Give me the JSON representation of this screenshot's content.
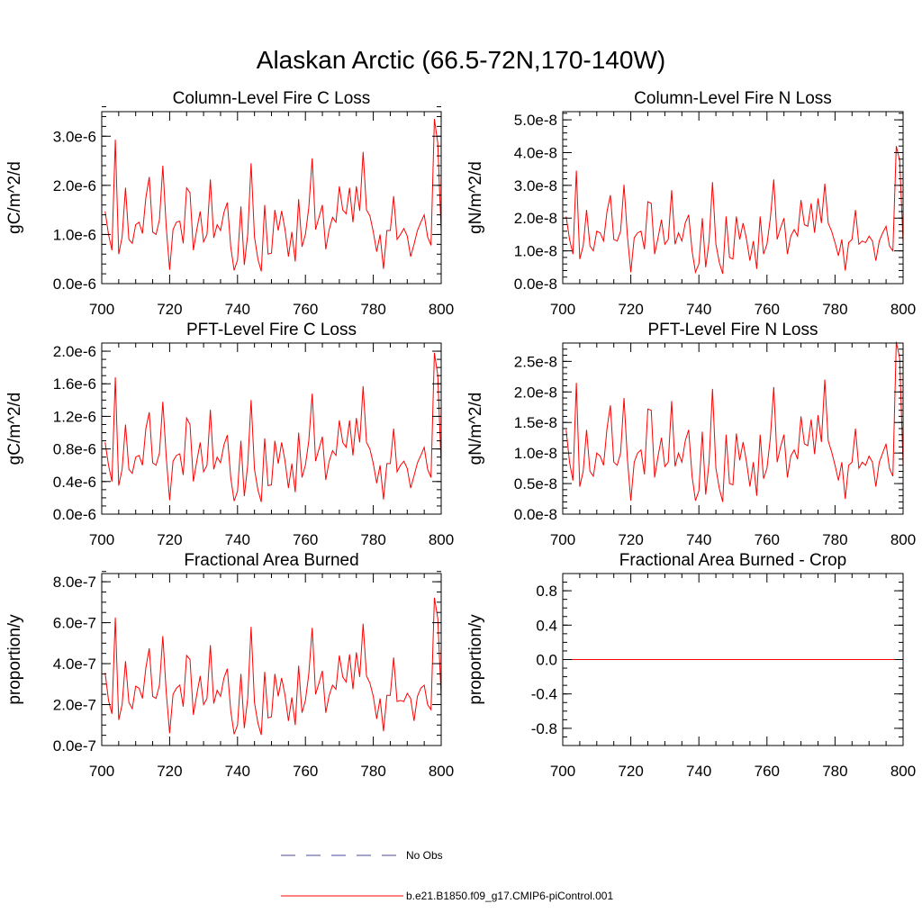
{
  "figure_title": "Alaskan Arctic (66.5-72N,170-140W)",
  "colors": {
    "series": "#ff0000",
    "obs": "#4a4a9a",
    "axis": "#000000",
    "zero_line": "#ff0000"
  },
  "legend": {
    "obs_label": "No Obs",
    "model_label": "b.e21.B1850.f09_g17.CMIP6-piControl.001"
  },
  "chart_data": [
    {
      "id": "col-c",
      "type": "line",
      "title": "Column-Level Fire C Loss",
      "xlabel": "",
      "ylabel": "gC/m^2/d",
      "xlim": [
        700,
        800
      ],
      "ylim": [
        0,
        3.5e-06
      ],
      "xticks": [
        700,
        720,
        740,
        760,
        780,
        800
      ],
      "yticks": [
        0,
        1e-06,
        2e-06,
        3e-06
      ],
      "yticklabels": [
        "0.0e-6",
        "1.0e-6",
        "2.0e-6",
        "3.0e-6"
      ],
      "yminor": 2e-07,
      "x": [
        701,
        702,
        703,
        704,
        705,
        706,
        707,
        708,
        709,
        710,
        711,
        712,
        713,
        714,
        715,
        716,
        717,
        718,
        719,
        720,
        721,
        722,
        723,
        724,
        725,
        726,
        727,
        728,
        729,
        730,
        731,
        732,
        733,
        734,
        735,
        736,
        737,
        738,
        739,
        740,
        741,
        742,
        743,
        744,
        745,
        746,
        747,
        748,
        749,
        750,
        751,
        752,
        753,
        754,
        755,
        756,
        757,
        758,
        759,
        760,
        761,
        762,
        763,
        764,
        765,
        766,
        767,
        768,
        769,
        770,
        771,
        772,
        773,
        774,
        775,
        776,
        777,
        778,
        779,
        780,
        781,
        782,
        783,
        784,
        785,
        786,
        787,
        788,
        789,
        790,
        791,
        792,
        793,
        794,
        795,
        796,
        797,
        798,
        799,
        800
      ],
      "values": [
        1.47e-06,
        1e-06,
        6.8e-07,
        2.93e-06,
        6e-07,
        9.5e-07,
        1.95e-06,
        9e-07,
        8.2e-07,
        1.2e-06,
        1.25e-06,
        1.02e-06,
        1.75e-06,
        2.17e-06,
        1.05e-06,
        1e-06,
        1.3e-06,
        2.4e-06,
        1.15e-06,
        2.8e-07,
        1.1e-06,
        1.25e-06,
        1.27e-06,
        8.2e-07,
        1.95e-06,
        1.85e-06,
        6.8e-07,
        1.1e-06,
        1.47e-06,
        8.5e-07,
        1e-06,
        2.12e-06,
        9.3e-07,
        1.2e-06,
        1.08e-06,
        1.45e-06,
        1.65e-06,
        7.5e-07,
        2.7e-07,
        4.8e-07,
        1.57e-06,
        3.8e-07,
        1e-06,
        2.45e-06,
        9.5e-07,
        5e-07,
        2.5e-07,
        1.6e-06,
        6e-07,
        6.2e-07,
        1.5e-06,
        1.08e-06,
        1.48e-06,
        1.1e-06,
        5.5e-07,
        1.05e-06,
        4.5e-07,
        1.72e-06,
        7.5e-07,
        1e-06,
        1.55e-06,
        2.55e-06,
        1.1e-06,
        1.35e-06,
        1.6e-06,
        7e-07,
        1.1e-06,
        1.35e-06,
        1.25e-06,
        1.98e-06,
        1.5e-06,
        1.42e-06,
        1.95e-06,
        1.25e-06,
        1.98e-06,
        1.48e-06,
        2.68e-06,
        1.5e-06,
        1.38e-06,
        1.05e-06,
        6.5e-07,
        1e-06,
        3e-07,
        1.08e-06,
        1.08e-06,
        1.78e-06,
        9e-07,
        1e-06,
        1.12e-06,
        9.7e-07,
        5.5e-07,
        8e-07,
        1.08e-06,
        1.25e-06,
        1.4e-06,
        9.5e-07,
        7.8e-07,
        3.35e-06,
        2.85e-06,
        1.05e-06
      ]
    },
    {
      "id": "col-n",
      "type": "line",
      "title": "Column-Level Fire N Loss",
      "xlabel": "",
      "ylabel": "gN/m^2/d",
      "xlim": [
        700,
        800
      ],
      "ylim": [
        0,
        5.25e-08
      ],
      "xticks": [
        700,
        720,
        740,
        760,
        780,
        800
      ],
      "yticks": [
        0,
        1e-08,
        2e-08,
        3e-08,
        4e-08,
        5e-08
      ],
      "yticklabels": [
        "0.0e-8",
        "1.0e-8",
        "2.0e-8",
        "3.0e-8",
        "4.0e-8",
        "5.0e-8"
      ],
      "yminor": 2e-09,
      "x": [
        701,
        702,
        703,
        704,
        705,
        706,
        707,
        708,
        709,
        710,
        711,
        712,
        713,
        714,
        715,
        716,
        717,
        718,
        719,
        720,
        721,
        722,
        723,
        724,
        725,
        726,
        727,
        728,
        729,
        730,
        731,
        732,
        733,
        734,
        735,
        736,
        737,
        738,
        739,
        740,
        741,
        742,
        743,
        744,
        745,
        746,
        747,
        748,
        749,
        750,
        751,
        752,
        753,
        754,
        755,
        756,
        757,
        758,
        759,
        760,
        761,
        762,
        763,
        764,
        765,
        766,
        767,
        768,
        769,
        770,
        771,
        772,
        773,
        774,
        775,
        776,
        777,
        778,
        779,
        780,
        781,
        782,
        783,
        784,
        785,
        786,
        787,
        788,
        789,
        790,
        791,
        792,
        793,
        794,
        795,
        796,
        797,
        798,
        799,
        800
      ],
      "values": [
        2.05e-08,
        1.35e-08,
        9e-09,
        3.45e-08,
        7.5e-09,
        1.15e-08,
        2.25e-08,
        1.15e-08,
        1e-08,
        1.6e-08,
        1.55e-08,
        1.3e-08,
        2.2e-08,
        2.7e-08,
        1.35e-08,
        1.3e-08,
        1.6e-08,
        3.02e-08,
        1.45e-08,
        3.5e-09,
        1.4e-08,
        1.55e-08,
        1.6e-08,
        1.05e-08,
        2.5e-08,
        2.45e-08,
        9e-09,
        1.4e-08,
        1.95e-08,
        1.2e-08,
        1.35e-08,
        2.85e-08,
        1.2e-08,
        1.55e-08,
        1.3e-08,
        1.85e-08,
        2.1e-08,
        1e-08,
        3.5e-09,
        6e-09,
        2e-08,
        5e-09,
        1.3e-08,
        3.1e-08,
        1.2e-08,
        6.5e-09,
        3e-09,
        2.05e-08,
        8e-09,
        7.5e-09,
        2.05e-08,
        1.35e-08,
        1.85e-08,
        1.35e-08,
        7e-09,
        1.3e-08,
        4.5e-09,
        2.05e-08,
        9e-09,
        1.2e-08,
        2e-08,
        3.18e-08,
        1.35e-08,
        1.7e-08,
        2e-08,
        9e-09,
        1.45e-08,
        1.65e-08,
        1.45e-08,
        2.55e-08,
        1.8e-08,
        1.75e-08,
        2.45e-08,
        1.55e-08,
        2.6e-08,
        1.85e-08,
        3.05e-08,
        1.85e-08,
        1.6e-08,
        1.25e-08,
        8.5e-09,
        1.35e-08,
        4e-09,
        1.25e-08,
        1.35e-08,
        2.25e-08,
        1.2e-08,
        1.3e-08,
        1.25e-08,
        1.45e-08,
        1.3e-08,
        7e-09,
        1.3e-08,
        1.55e-08,
        1.75e-08,
        1.15e-08,
        1e-08,
        4.2e-08,
        3.75e-08,
        1.25e-08
      ]
    },
    {
      "id": "pft-c",
      "type": "line",
      "title": "PFT-Level Fire C Loss",
      "xlabel": "",
      "ylabel": "gC/m^2/d",
      "xlim": [
        700,
        800
      ],
      "ylim": [
        0,
        2.1e-06
      ],
      "xticks": [
        700,
        720,
        740,
        760,
        780,
        800
      ],
      "yticks": [
        0,
        4e-07,
        8e-07,
        1.2e-06,
        1.6e-06,
        2e-06
      ],
      "yticklabels": [
        "0.0e-6",
        "0.4e-6",
        "0.8e-6",
        "1.2e-6",
        "1.6e-6",
        "2.0e-6"
      ],
      "yminor": 1e-07,
      "x": [
        701,
        702,
        703,
        704,
        705,
        706,
        707,
        708,
        709,
        710,
        711,
        712,
        713,
        714,
        715,
        716,
        717,
        718,
        719,
        720,
        721,
        722,
        723,
        724,
        725,
        726,
        727,
        728,
        729,
        730,
        731,
        732,
        733,
        734,
        735,
        736,
        737,
        738,
        739,
        740,
        741,
        742,
        743,
        744,
        745,
        746,
        747,
        748,
        749,
        750,
        751,
        752,
        753,
        754,
        755,
        756,
        757,
        758,
        759,
        760,
        761,
        762,
        763,
        764,
        765,
        766,
        767,
        768,
        769,
        770,
        771,
        772,
        773,
        774,
        775,
        776,
        777,
        778,
        779,
        780,
        781,
        782,
        783,
        784,
        785,
        786,
        787,
        788,
        789,
        790,
        791,
        792,
        793,
        794,
        795,
        796,
        797,
        798,
        799,
        800
      ],
      "values": [
        8.8e-07,
        6e-07,
        4e-07,
        1.68e-06,
        3.5e-07,
        5.5e-07,
        1.1e-06,
        5.5e-07,
        5e-07,
        7e-07,
        7.2e-07,
        6e-07,
        1.05e-06,
        1.25e-06,
        6.3e-07,
        6e-07,
        7.5e-07,
        1.38e-06,
        7e-07,
        1.7e-07,
        6.5e-07,
        7.2e-07,
        7.4e-07,
        4.8e-07,
        1.18e-06,
        1.1e-06,
        4e-07,
        6.5e-07,
        8.8e-07,
        5.2e-07,
        6e-07,
        1.28e-06,
        5.5e-07,
        7e-07,
        6.3e-07,
        8.5e-07,
        9.7e-07,
        4.5e-07,
        1.6e-07,
        2.8e-07,
        9e-07,
        2.2e-07,
        6e-07,
        1.4e-06,
        5.5e-07,
        3e-07,
        1.5e-07,
        9.3e-07,
        3.5e-07,
        3.6e-07,
        9e-07,
        6.2e-07,
        8.8e-07,
        6.5e-07,
        3.2e-07,
        6.2e-07,
        2.7e-07,
        1e-06,
        4.5e-07,
        6e-07,
        9e-07,
        1.48e-06,
        6.5e-07,
        8e-07,
        9.5e-07,
        4.2e-07,
        6.5e-07,
        7.8e-07,
        7.2e-07,
        1.15e-06,
        8.8e-07,
        8.2e-07,
        1.15e-06,
        7.2e-07,
        1.18e-06,
        8.8e-07,
        1.57e-06,
        8.8e-07,
        8e-07,
        6.2e-07,
        3.8e-07,
        6e-07,
        1.8e-07,
        6.2e-07,
        6.2e-07,
        1.05e-06,
        5.2e-07,
        6e-07,
        6.5e-07,
        5.6e-07,
        3.2e-07,
        4.7e-07,
        6.3e-07,
        7.2e-07,
        8.2e-07,
        5.5e-07,
        4.5e-07,
        1.98e-06,
        1.7e-06,
        6e-07
      ]
    },
    {
      "id": "pft-n",
      "type": "line",
      "title": "PFT-Level Fire N Loss",
      "xlabel": "",
      "ylabel": "gN/m^2/d",
      "xlim": [
        700,
        800
      ],
      "ylim": [
        0,
        2.8e-08
      ],
      "xticks": [
        700,
        720,
        740,
        760,
        780,
        800
      ],
      "yticks": [
        0,
        5e-09,
        1e-08,
        1.5e-08,
        2e-08,
        2.5e-08
      ],
      "yticklabels": [
        "0.0e-8",
        "0.5e-8",
        "1.0e-8",
        "1.5e-8",
        "2.0e-8",
        "2.5e-8"
      ],
      "yminor": 1e-09,
      "x": [
        701,
        702,
        703,
        704,
        705,
        706,
        707,
        708,
        709,
        710,
        711,
        712,
        713,
        714,
        715,
        716,
        717,
        718,
        719,
        720,
        721,
        722,
        723,
        724,
        725,
        726,
        727,
        728,
        729,
        730,
        731,
        732,
        733,
        734,
        735,
        736,
        737,
        738,
        739,
        740,
        741,
        742,
        743,
        744,
        745,
        746,
        747,
        748,
        749,
        750,
        751,
        752,
        753,
        754,
        755,
        756,
        757,
        758,
        759,
        760,
        761,
        762,
        763,
        764,
        765,
        766,
        767,
        768,
        769,
        770,
        771,
        772,
        773,
        774,
        775,
        776,
        777,
        778,
        779,
        780,
        781,
        782,
        783,
        784,
        785,
        786,
        787,
        788,
        789,
        790,
        791,
        792,
        793,
        794,
        795,
        796,
        797,
        798,
        799,
        800
      ],
      "values": [
        1.38e-08,
        8.5e-09,
        5.5e-09,
        2.15e-08,
        4.5e-09,
        7e-09,
        1.38e-08,
        7e-09,
        6.2e-09,
        1e-08,
        9.5e-09,
        8e-09,
        1.4e-08,
        1.78e-08,
        8.5e-09,
        8e-09,
        1e-08,
        1.9e-08,
        9e-09,
        2.2e-09,
        8.5e-09,
        1e-08,
        1.05e-08,
        6.5e-09,
        1.72e-08,
        1.7e-08,
        6e-09,
        9.5e-09,
        1.25e-08,
        7.8e-09,
        8.5e-09,
        1.85e-08,
        7.8e-09,
        1e-08,
        8.5e-09,
        1.2e-08,
        1.38e-08,
        6.2e-09,
        2.2e-09,
        3.8e-09,
        1.35e-08,
        3.2e-09,
        8.5e-09,
        2.05e-08,
        7.5e-09,
        4.2e-09,
        2e-09,
        1.3e-08,
        5e-09,
        4.8e-09,
        1.32e-08,
        8.8e-09,
        1.18e-08,
        8.5e-09,
        4.5e-09,
        8.5e-09,
        3e-09,
        1.3e-08,
        5.8e-09,
        7.5e-09,
        1.25e-08,
        2.08e-08,
        8.5e-09,
        1.1e-08,
        1.3e-08,
        6e-09,
        9.5e-09,
        1.05e-08,
        9e-09,
        1.6e-08,
        1.15e-08,
        1.12e-08,
        1.55e-08,
        9.8e-09,
        1.62e-08,
        1.18e-08,
        2.2e-08,
        1.2e-08,
        1.02e-08,
        8e-09,
        5.5e-09,
        8.5e-09,
        2.5e-09,
        8e-09,
        8.5e-09,
        1.4e-08,
        7.5e-09,
        8.5e-09,
        8e-09,
        9.5e-09,
        8.5e-09,
        4.5e-09,
        8.5e-09,
        1e-08,
        1.15e-08,
        7.5e-09,
        6.2e-09,
        2.82e-08,
        2.55e-08,
        8e-09
      ]
    },
    {
      "id": "frac-area",
      "type": "line",
      "title": "Fractional Area Burned",
      "xlabel": "",
      "ylabel": "proportion/y",
      "xlim": [
        700,
        800
      ],
      "ylim": [
        0,
        8.4e-07
      ],
      "xticks": [
        700,
        720,
        740,
        760,
        780,
        800
      ],
      "yticks": [
        0,
        2e-07,
        4e-07,
        6e-07,
        8e-07
      ],
      "yticklabels": [
        "0.0e-7",
        "2.0e-7",
        "4.0e-7",
        "6.0e-7",
        "8.0e-7"
      ],
      "yminor": 5e-08,
      "x": [
        701,
        702,
        703,
        704,
        705,
        706,
        707,
        708,
        709,
        710,
        711,
        712,
        713,
        714,
        715,
        716,
        717,
        718,
        719,
        720,
        721,
        722,
        723,
        724,
        725,
        726,
        727,
        728,
        729,
        730,
        731,
        732,
        733,
        734,
        735,
        736,
        737,
        738,
        739,
        740,
        741,
        742,
        743,
        744,
        745,
        746,
        747,
        748,
        749,
        750,
        751,
        752,
        753,
        754,
        755,
        756,
        757,
        758,
        759,
        760,
        761,
        762,
        763,
        764,
        765,
        766,
        767,
        768,
        769,
        770,
        771,
        772,
        773,
        774,
        775,
        776,
        777,
        778,
        779,
        780,
        781,
        782,
        783,
        784,
        785,
        786,
        787,
        788,
        789,
        790,
        791,
        792,
        793,
        794,
        795,
        796,
        797,
        798,
        799,
        800
      ],
      "values": [
        3.55e-07,
        2.2e-07,
        1.55e-07,
        6.25e-07,
        1.25e-07,
        2e-07,
        4.12e-07,
        2.1e-07,
        1.8e-07,
        2.9e-07,
        2.8e-07,
        2.3e-07,
        3.8e-07,
        4.75e-07,
        2.4e-07,
        2.3e-07,
        2.95e-07,
        5.35e-07,
        2.6e-07,
        6e-08,
        2.5e-07,
        2.8e-07,
        2.95e-07,
        1.9e-07,
        4.4e-07,
        4.2e-07,
        1.5e-07,
        2.5e-07,
        3.4e-07,
        2e-07,
        2.3e-07,
        4.9e-07,
        2.05e-07,
        2.7e-07,
        2.4e-07,
        3.3e-07,
        3.75e-07,
        1.7e-07,
        5.5e-08,
        1e-07,
        3.5e-07,
        8.5e-08,
        2.3e-07,
        5.8e-07,
        2.1e-07,
        1.1e-07,
        5.2e-08,
        3.6e-07,
        1.35e-07,
        1.4e-07,
        3.5e-07,
        2.4e-07,
        3.3e-07,
        2.45e-07,
        1.2e-07,
        2.35e-07,
        1e-07,
        3.9e-07,
        1.6e-07,
        2.2e-07,
        3.5e-07,
        5.75e-07,
        2.5e-07,
        3.05e-07,
        3.65e-07,
        1.6e-07,
        2.45e-07,
        2.95e-07,
        2.75e-07,
        4.4e-07,
        3.35e-07,
        3.1e-07,
        4.45e-07,
        2.75e-07,
        4.55e-07,
        3.35e-07,
        5.95e-07,
        3.4e-07,
        3.05e-07,
        2.4e-07,
        1.3e-07,
        2.3e-07,
        7e-08,
        2.45e-07,
        2.45e-07,
        4.3e-07,
        2.15e-07,
        2.2e-07,
        2.15e-07,
        2.55e-07,
        2.3e-07,
        1.2e-07,
        2.4e-07,
        2.8e-07,
        2.95e-07,
        2e-07,
        1.75e-07,
        7.22e-07,
        6.2e-07,
        2.35e-07
      ]
    },
    {
      "id": "frac-area-crop",
      "type": "line",
      "title": "Fractional Area Burned - Crop",
      "xlabel": "",
      "ylabel": "proportion/y",
      "xlim": [
        700,
        800
      ],
      "ylim": [
        -1.0,
        1.0
      ],
      "xticks": [
        700,
        720,
        740,
        760,
        780,
        800
      ],
      "yticks": [
        -0.8,
        -0.4,
        0,
        0.4,
        0.8
      ],
      "yticklabels": [
        "-0.8",
        "-0.4",
        "0.0",
        "0.4",
        "0.8"
      ],
      "yminor": 0.1,
      "x": [
        701,
        800
      ],
      "values": [
        0,
        0
      ]
    }
  ]
}
